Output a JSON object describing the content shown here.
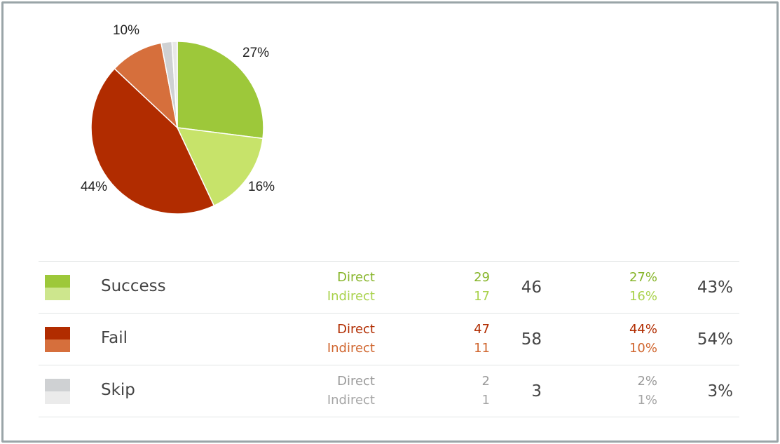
{
  "chart_data": {
    "type": "pie",
    "slices": [
      {
        "label": "27%",
        "value": 27,
        "color": "#9dc83a"
      },
      {
        "label": "16%",
        "value": 16,
        "color": "#c7e36a"
      },
      {
        "label": "44%",
        "value": 44,
        "color": "#b12c00"
      },
      {
        "label": "10%",
        "value": 10,
        "color": "#d66f3c"
      },
      {
        "label": "",
        "value": 2,
        "color": "#cfd1d3"
      },
      {
        "label": "",
        "value": 1,
        "color": "#e8e8e8"
      }
    ]
  },
  "table": {
    "rows": [
      {
        "category": "Success",
        "color_direct": "#9dc83a",
        "color_indirect": "#cde68d",
        "text_direct": "#87b52a",
        "text_indirect": "#a9d24c",
        "direct_label": "Direct",
        "indirect_label": "Indirect",
        "direct_count": "29",
        "indirect_count": "17",
        "total": "46",
        "direct_pct": "27%",
        "indirect_pct": "16%",
        "total_pct": "43%"
      },
      {
        "category": "Fail",
        "color_direct": "#b12c00",
        "color_indirect": "#d66f3c",
        "text_direct": "#b12c00",
        "text_indirect": "#d0662f",
        "direct_label": "Direct",
        "indirect_label": "Indirect",
        "direct_count": "47",
        "indirect_count": "11",
        "total": "58",
        "direct_pct": "44%",
        "indirect_pct": "10%",
        "total_pct": "54%"
      },
      {
        "category": "Skip",
        "color_direct": "#cfd1d3",
        "color_indirect": "#ebebeb",
        "text_direct": "#9a9a9a",
        "text_indirect": "#a5a5a5",
        "direct_label": "Direct",
        "indirect_label": "Indirect",
        "direct_count": "2",
        "indirect_count": "1",
        "total": "3",
        "direct_pct": "2%",
        "indirect_pct": "1%",
        "total_pct": "3%"
      }
    ]
  }
}
